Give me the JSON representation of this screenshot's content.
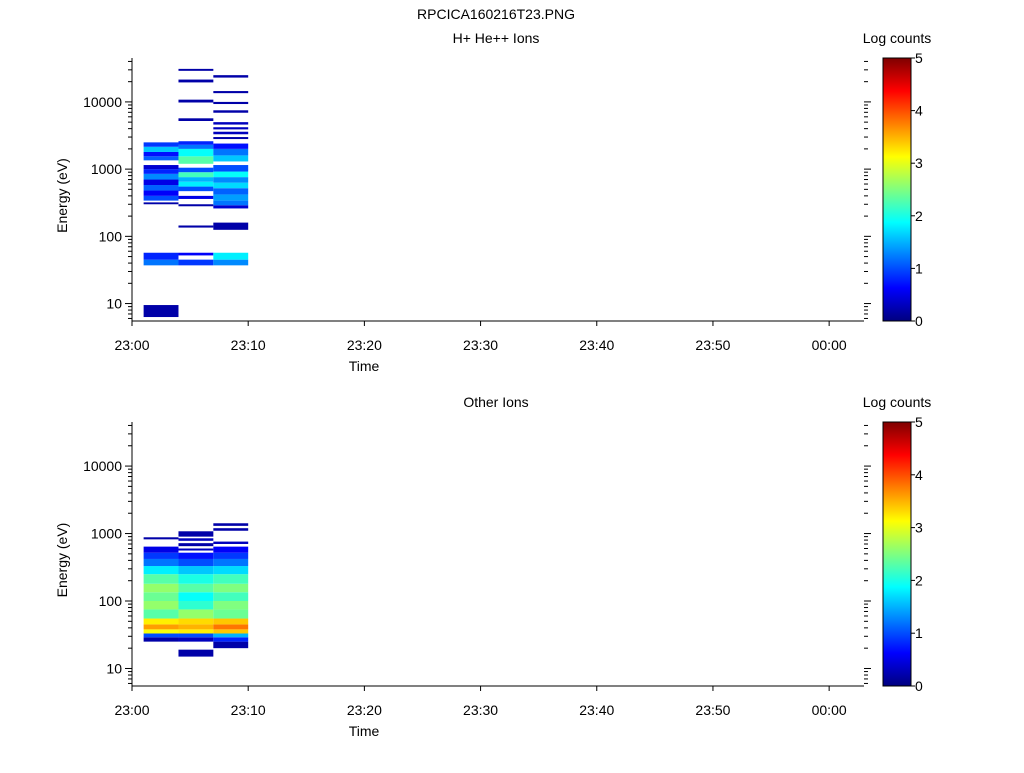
{
  "page_title": "RPCICA160216T23.PNG",
  "chart_data": [
    {
      "type": "heatmap",
      "title": "H+ He++ Ions",
      "xlabel": "Time",
      "ylabel": "Energy (eV)",
      "colorbar_label": "Log counts",
      "colorbar_ticks": [
        "0",
        "1",
        "2",
        "3",
        "4",
        "5"
      ],
      "colorbar_range": [
        0,
        5
      ],
      "colormap": "jet",
      "yscale": "log",
      "ylim": [
        5.5,
        45000
      ],
      "xlim": [
        "23:00",
        "00:03"
      ],
      "x_tick_labels": [
        "23:00",
        "23:10",
        "23:20",
        "23:30",
        "23:40",
        "23:50",
        "00:00"
      ],
      "y_tick_labels": [
        "10",
        "100",
        "1000",
        "10000"
      ],
      "columns": [
        {
          "t_start": "23:01",
          "t_end": "23:04",
          "bins": [
            {
              "e_lo": 6.3,
              "e_hi": 9.5,
              "value": 0.2
            },
            {
              "e_lo": 37,
              "e_hi": 45,
              "value": 1.2
            },
            {
              "e_lo": 45,
              "e_hi": 57,
              "value": 0.8
            },
            {
              "e_lo": 300,
              "e_hi": 320,
              "value": 0.2
            },
            {
              "e_lo": 340,
              "e_hi": 400,
              "value": 1.0
            },
            {
              "e_lo": 400,
              "e_hi": 480,
              "value": 0.6
            },
            {
              "e_lo": 480,
              "e_hi": 580,
              "value": 1.1
            },
            {
              "e_lo": 580,
              "e_hi": 700,
              "value": 0.5
            },
            {
              "e_lo": 700,
              "e_hi": 850,
              "value": 1.3
            },
            {
              "e_lo": 850,
              "e_hi": 1000,
              "value": 0.8
            },
            {
              "e_lo": 1000,
              "e_hi": 1150,
              "value": 0.4
            },
            {
              "e_lo": 1350,
              "e_hi": 1550,
              "value": 1.1
            },
            {
              "e_lo": 1550,
              "e_hi": 1800,
              "value": 0.7
            },
            {
              "e_lo": 1800,
              "e_hi": 2150,
              "value": 1.6
            },
            {
              "e_lo": 2150,
              "e_hi": 2500,
              "value": 0.9
            }
          ]
        },
        {
          "t_start": "23:04",
          "t_end": "23:07",
          "bins": [
            {
              "e_lo": 37,
              "e_hi": 45,
              "value": 0.9
            },
            {
              "e_lo": 52,
              "e_hi": 57,
              "value": 0.6
            },
            {
              "e_lo": 135,
              "e_hi": 145,
              "value": 0.2
            },
            {
              "e_lo": 280,
              "e_hi": 300,
              "value": 0.2
            },
            {
              "e_lo": 360,
              "e_hi": 400,
              "value": 0.5
            },
            {
              "e_lo": 470,
              "e_hi": 550,
              "value": 1.0
            },
            {
              "e_lo": 550,
              "e_hi": 650,
              "value": 1.8
            },
            {
              "e_lo": 650,
              "e_hi": 760,
              "value": 1.5
            },
            {
              "e_lo": 760,
              "e_hi": 900,
              "value": 2.2
            },
            {
              "e_lo": 900,
              "e_hi": 1050,
              "value": 1.0
            },
            {
              "e_lo": 1200,
              "e_hi": 1550,
              "value": 2.3
            },
            {
              "e_lo": 1550,
              "e_hi": 2000,
              "value": 1.9
            },
            {
              "e_lo": 2000,
              "e_hi": 2300,
              "value": 1.2
            },
            {
              "e_lo": 2300,
              "e_hi": 2600,
              "value": 0.8
            },
            {
              "e_lo": 5200,
              "e_hi": 5700,
              "value": 0.2
            },
            {
              "e_lo": 9800,
              "e_hi": 10800,
              "value": 0.2
            },
            {
              "e_lo": 19500,
              "e_hi": 21500,
              "value": 0.2
            },
            {
              "e_lo": 29000,
              "e_hi": 31000,
              "value": 0.2
            }
          ]
        },
        {
          "t_start": "23:07",
          "t_end": "23:10",
          "bins": [
            {
              "e_lo": 37,
              "e_hi": 45,
              "value": 1.3
            },
            {
              "e_lo": 45,
              "e_hi": 57,
              "value": 1.8
            },
            {
              "e_lo": 125,
              "e_hi": 160,
              "value": 0.2
            },
            {
              "e_lo": 260,
              "e_hi": 290,
              "value": 0.4
            },
            {
              "e_lo": 290,
              "e_hi": 340,
              "value": 1.2
            },
            {
              "e_lo": 340,
              "e_hi": 420,
              "value": 1.4
            },
            {
              "e_lo": 420,
              "e_hi": 520,
              "value": 1.1
            },
            {
              "e_lo": 520,
              "e_hi": 630,
              "value": 1.7
            },
            {
              "e_lo": 630,
              "e_hi": 760,
              "value": 1.3
            },
            {
              "e_lo": 760,
              "e_hi": 920,
              "value": 1.9
            },
            {
              "e_lo": 920,
              "e_hi": 1150,
              "value": 1.0
            },
            {
              "e_lo": 1300,
              "e_hi": 1600,
              "value": 1.6
            },
            {
              "e_lo": 1600,
              "e_hi": 2000,
              "value": 1.2
            },
            {
              "e_lo": 2000,
              "e_hi": 2400,
              "value": 0.7
            },
            {
              "e_lo": 2800,
              "e_hi": 3000,
              "value": 0.2
            },
            {
              "e_lo": 3300,
              "e_hi": 3600,
              "value": 0.3
            },
            {
              "e_lo": 3900,
              "e_hi": 4200,
              "value": 0.3
            },
            {
              "e_lo": 4600,
              "e_hi": 5000,
              "value": 0.3
            },
            {
              "e_lo": 6900,
              "e_hi": 7500,
              "value": 0.2
            },
            {
              "e_lo": 9300,
              "e_hi": 10000,
              "value": 0.2
            },
            {
              "e_lo": 13500,
              "e_hi": 14500,
              "value": 0.2
            },
            {
              "e_lo": 23000,
              "e_hi": 25000,
              "value": 0.2
            }
          ]
        }
      ]
    },
    {
      "type": "heatmap",
      "title": "Other Ions",
      "xlabel": "Time",
      "ylabel": "Energy (eV)",
      "colorbar_label": "Log counts",
      "colorbar_ticks": [
        "0",
        "1",
        "2",
        "3",
        "4",
        "5"
      ],
      "colorbar_range": [
        0,
        5
      ],
      "colormap": "jet",
      "yscale": "log",
      "ylim": [
        5.5,
        45000
      ],
      "xlim": [
        "23:00",
        "00:03"
      ],
      "x_tick_labels": [
        "23:00",
        "23:10",
        "23:20",
        "23:30",
        "23:40",
        "23:50",
        "00:00"
      ],
      "y_tick_labels": [
        "10",
        "100",
        "1000",
        "10000"
      ],
      "columns": [
        {
          "t_start": "23:01",
          "t_end": "23:04",
          "bins": [
            {
              "e_lo": 25,
              "e_hi": 29,
              "value": 0.2
            },
            {
              "e_lo": 29,
              "e_hi": 33,
              "value": 1.0
            },
            {
              "e_lo": 33,
              "e_hi": 38,
              "value": 3.1
            },
            {
              "e_lo": 38,
              "e_hi": 45,
              "value": 3.6
            },
            {
              "e_lo": 45,
              "e_hi": 55,
              "value": 3.2
            },
            {
              "e_lo": 55,
              "e_hi": 75,
              "value": 2.3
            },
            {
              "e_lo": 75,
              "e_hi": 100,
              "value": 2.6
            },
            {
              "e_lo": 100,
              "e_hi": 135,
              "value": 2.4
            },
            {
              "e_lo": 135,
              "e_hi": 180,
              "value": 2.6
            },
            {
              "e_lo": 180,
              "e_hi": 250,
              "value": 2.3
            },
            {
              "e_lo": 250,
              "e_hi": 330,
              "value": 1.8
            },
            {
              "e_lo": 330,
              "e_hi": 420,
              "value": 1.2
            },
            {
              "e_lo": 420,
              "e_hi": 520,
              "value": 0.9
            },
            {
              "e_lo": 520,
              "e_hi": 640,
              "value": 0.5
            },
            {
              "e_lo": 820,
              "e_hi": 880,
              "value": 0.2
            }
          ]
        },
        {
          "t_start": "23:04",
          "t_end": "23:07",
          "bins": [
            {
              "e_lo": 15,
              "e_hi": 19,
              "value": 0.2
            },
            {
              "e_lo": 25,
              "e_hi": 29,
              "value": 0.3
            },
            {
              "e_lo": 29,
              "e_hi": 33,
              "value": 1.0
            },
            {
              "e_lo": 33,
              "e_hi": 38,
              "value": 3.2
            },
            {
              "e_lo": 38,
              "e_hi": 45,
              "value": 3.5
            },
            {
              "e_lo": 45,
              "e_hi": 55,
              "value": 3.3
            },
            {
              "e_lo": 55,
              "e_hi": 75,
              "value": 2.6
            },
            {
              "e_lo": 75,
              "e_hi": 100,
              "value": 2.1
            },
            {
              "e_lo": 100,
              "e_hi": 135,
              "value": 1.9
            },
            {
              "e_lo": 135,
              "e_hi": 180,
              "value": 2.3
            },
            {
              "e_lo": 180,
              "e_hi": 250,
              "value": 2.0
            },
            {
              "e_lo": 250,
              "e_hi": 330,
              "value": 1.6
            },
            {
              "e_lo": 330,
              "e_hi": 420,
              "value": 1.0
            },
            {
              "e_lo": 420,
              "e_hi": 520,
              "value": 0.7
            },
            {
              "e_lo": 560,
              "e_hi": 600,
              "value": 0.3
            },
            {
              "e_lo": 650,
              "e_hi": 720,
              "value": 0.2
            },
            {
              "e_lo": 780,
              "e_hi": 850,
              "value": 0.3
            },
            {
              "e_lo": 900,
              "e_hi": 1080,
              "value": 0.2
            }
          ]
        },
        {
          "t_start": "23:07",
          "t_end": "23:10",
          "bins": [
            {
              "e_lo": 20,
              "e_hi": 25,
              "value": 0.2
            },
            {
              "e_lo": 25,
              "e_hi": 29,
              "value": 0.8
            },
            {
              "e_lo": 29,
              "e_hi": 33,
              "value": 1.5
            },
            {
              "e_lo": 33,
              "e_hi": 38,
              "value": 3.4
            },
            {
              "e_lo": 38,
              "e_hi": 45,
              "value": 3.8
            },
            {
              "e_lo": 45,
              "e_hi": 55,
              "value": 3.4
            },
            {
              "e_lo": 55,
              "e_hi": 75,
              "value": 2.4
            },
            {
              "e_lo": 75,
              "e_hi": 100,
              "value": 2.5
            },
            {
              "e_lo": 100,
              "e_hi": 135,
              "value": 2.2
            },
            {
              "e_lo": 135,
              "e_hi": 180,
              "value": 2.5
            },
            {
              "e_lo": 180,
              "e_hi": 250,
              "value": 2.2
            },
            {
              "e_lo": 250,
              "e_hi": 330,
              "value": 1.7
            },
            {
              "e_lo": 330,
              "e_hi": 420,
              "value": 1.2
            },
            {
              "e_lo": 420,
              "e_hi": 520,
              "value": 0.9
            },
            {
              "e_lo": 520,
              "e_hi": 640,
              "value": 0.6
            },
            {
              "e_lo": 700,
              "e_hi": 760,
              "value": 0.3
            },
            {
              "e_lo": 1100,
              "e_hi": 1200,
              "value": 0.2
            },
            {
              "e_lo": 1300,
              "e_hi": 1420,
              "value": 0.2
            }
          ]
        }
      ]
    }
  ]
}
